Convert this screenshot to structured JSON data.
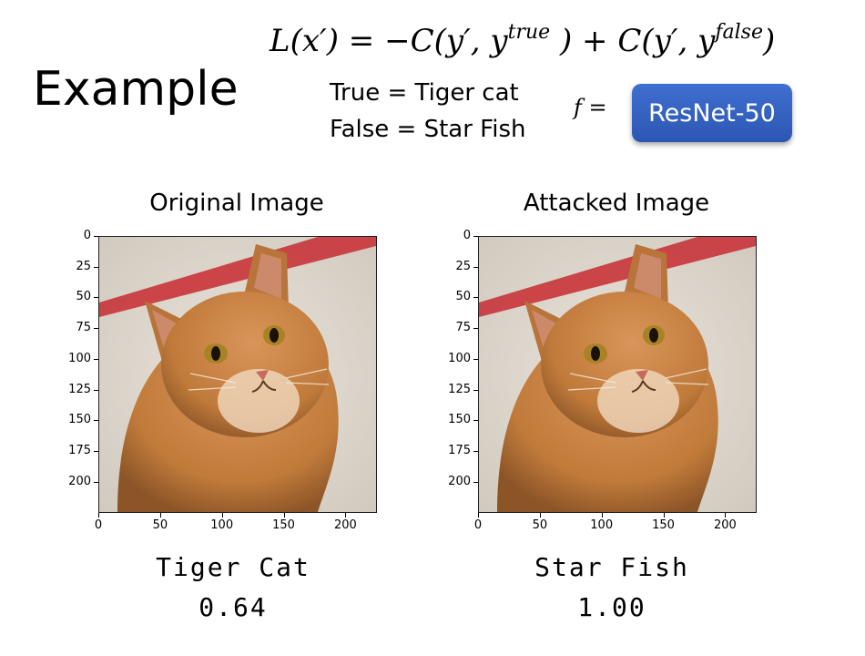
{
  "slide": {
    "title": "Example",
    "formula": {
      "lhs": "L(x′) = −C(y′, y",
      "true_sup": "true",
      "mid": " ) + C(y′, y",
      "false_sup": "false",
      "end": ")"
    },
    "true_line": "True = Tiger cat",
    "false_line": "False = Star Fish",
    "f_label": "f =",
    "model": "ResNet-50"
  },
  "panels": [
    {
      "title": "Original Image",
      "caption": "Tiger Cat",
      "score": "0.64",
      "y_ticks": [
        "0",
        "25",
        "50",
        "75",
        "100",
        "125",
        "150",
        "175",
        "200"
      ],
      "x_ticks": [
        "0",
        "50",
        "100",
        "150",
        "200"
      ]
    },
    {
      "title": "Attacked Image",
      "caption": "Star Fish",
      "score": "1.00",
      "y_ticks": [
        "0",
        "25",
        "50",
        "75",
        "100",
        "125",
        "150",
        "175",
        "200"
      ],
      "x_ticks": [
        "0",
        "50",
        "100",
        "150",
        "200"
      ]
    }
  ],
  "colors": {
    "button": "#3b67c9",
    "cat_fur": "#c07a3a",
    "red_band": "#c8343a"
  }
}
